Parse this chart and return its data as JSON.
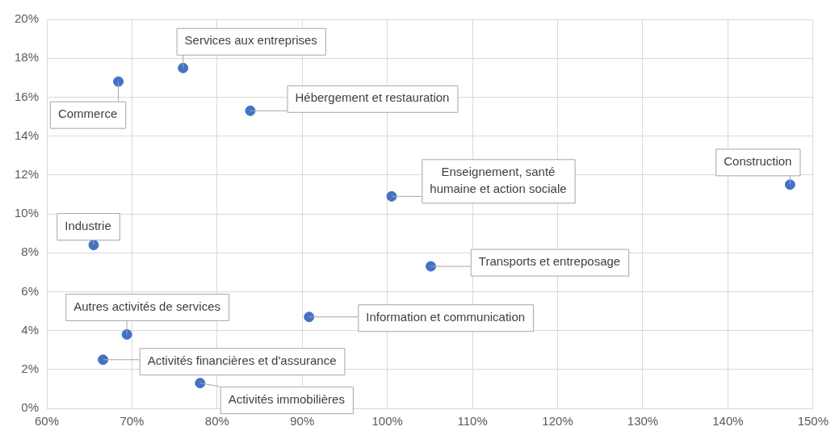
{
  "chart_data": {
    "type": "scatter",
    "color": "#4472c4",
    "marker": "circle",
    "grid": true,
    "legend": false,
    "x": [
      68.4,
      76.0,
      83.9,
      100.5,
      147.3,
      65.5,
      105.1,
      69.4,
      90.8,
      66.6,
      78.0
    ],
    "values": [
      16.8,
      17.5,
      15.3,
      10.9,
      11.5,
      8.4,
      7.3,
      3.8,
      4.7,
      2.5,
      1.3
    ],
    "xlim": [
      60,
      150
    ],
    "xticks": [
      {
        "value": 60,
        "label": "60%"
      },
      {
        "value": 70,
        "label": "70%"
      },
      {
        "value": 80,
        "label": "80%"
      },
      {
        "value": 90,
        "label": "90%"
      },
      {
        "value": 100,
        "label": "100%"
      },
      {
        "value": 110,
        "label": "110%"
      },
      {
        "value": 120,
        "label": "120%"
      },
      {
        "value": 130,
        "label": "130%"
      },
      {
        "value": 140,
        "label": "140%"
      },
      {
        "value": 150,
        "label": "150%"
      }
    ],
    "ylim": [
      0,
      20
    ],
    "yticks": [
      {
        "value": 0,
        "label": "0%"
      },
      {
        "value": 2,
        "label": "2%"
      },
      {
        "value": 4,
        "label": "4%"
      },
      {
        "value": 6,
        "label": "6%"
      },
      {
        "value": 8,
        "label": "8%"
      },
      {
        "value": 10,
        "label": "10%"
      },
      {
        "value": 12,
        "label": "12%"
      },
      {
        "value": 14,
        "label": "14%"
      },
      {
        "value": 16,
        "label": "16%"
      },
      {
        "value": 18,
        "label": "18%"
      },
      {
        "value": 20,
        "label": "20%"
      }
    ],
    "annotations": [
      {
        "text": "Commerce",
        "x": 68.4,
        "y": 16.8
      },
      {
        "text": "Services aux entreprises",
        "x": 76.0,
        "y": 17.5
      },
      {
        "text": "Hébergement et restauration",
        "x": 83.9,
        "y": 15.3
      },
      {
        "text": "Enseignement, santé humaine et action sociale",
        "x": 100.5,
        "y": 10.9
      },
      {
        "text": "Construction",
        "x": 147.3,
        "y": 11.5
      },
      {
        "text": "Industrie",
        "x": 65.5,
        "y": 8.4
      },
      {
        "text": "Transports et entreposage",
        "x": 105.1,
        "y": 7.3
      },
      {
        "text": "Autres activités de services",
        "x": 69.4,
        "y": 3.8
      },
      {
        "text": "Information et communication",
        "x": 90.8,
        "y": 4.7
      },
      {
        "text": "Activités financières et d'assurance",
        "x": 66.6,
        "y": 2.5
      },
      {
        "text": "Activités immobilières",
        "x": 78.0,
        "y": 1.3
      }
    ]
  }
}
